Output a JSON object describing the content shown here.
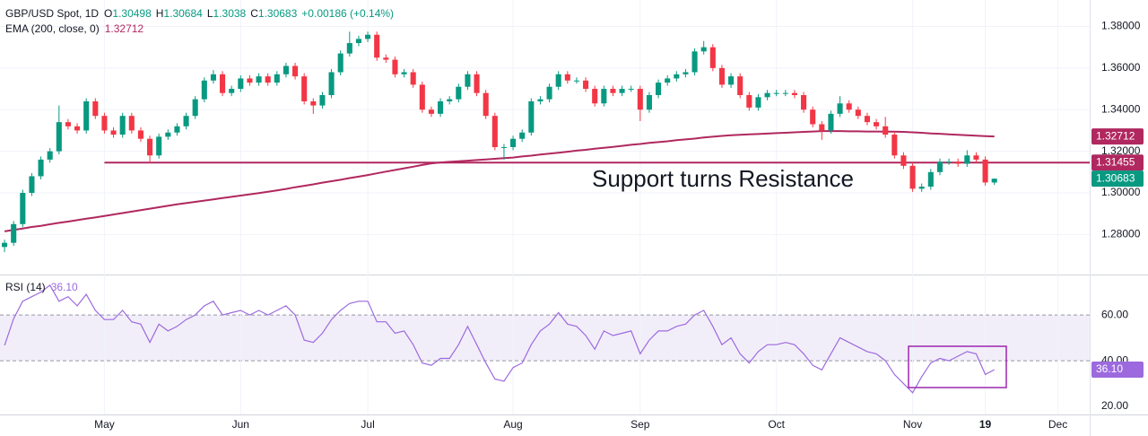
{
  "chart_data": {
    "type": "candlestick",
    "symbol": "GBP/USD Spot, 1D",
    "ohlc_prefixes": [
      "O",
      "H",
      "L",
      "C"
    ],
    "change": "+0.00186 (+0.14%)",
    "ema_title": "EMA (200, close, 0)",
    "annotation": "Support turns Resistance",
    "categories": [
      null,
      null,
      null,
      null,
      null,
      null,
      null,
      null,
      null,
      null,
      null,
      "May",
      null,
      null,
      null,
      null,
      null,
      null,
      null,
      null,
      null,
      null,
      null,
      null,
      null,
      null,
      "Jun",
      null,
      null,
      null,
      null,
      null,
      null,
      null,
      null,
      null,
      null,
      null,
      null,
      null,
      "Jul",
      null,
      null,
      null,
      null,
      null,
      null,
      null,
      null,
      null,
      null,
      null,
      null,
      null,
      null,
      null,
      "Aug",
      null,
      null,
      null,
      null,
      null,
      null,
      null,
      null,
      null,
      null,
      null,
      null,
      null,
      "Sep",
      null,
      null,
      null,
      null,
      null,
      null,
      null,
      null,
      null,
      null,
      null,
      null,
      null,
      null,
      "Oct",
      null,
      null,
      null,
      null,
      null,
      null,
      null,
      null,
      null,
      null,
      null,
      null,
      null,
      null,
      "Nov",
      null,
      null,
      null,
      null,
      null,
      null,
      null,
      "19",
      null,
      null,
      null,
      null,
      null,
      null,
      null,
      "Dec",
      null,
      null,
      null
    ],
    "open": [
      1.274,
      1.276,
      1.285,
      1.3,
      1.308,
      1.316,
      1.32,
      1.334,
      1.332,
      1.33,
      1.344,
      1.337,
      1.33,
      1.328,
      1.337,
      1.33,
      1.326,
      1.318,
      1.327,
      1.329,
      1.332,
      1.337,
      1.345,
      1.354,
      1.357,
      1.348,
      1.35,
      1.355,
      1.353,
      1.356,
      1.353,
      1.357,
      1.361,
      1.356,
      1.344,
      1.342,
      1.347,
      1.358,
      1.367,
      1.372,
      1.374,
      1.376,
      1.365,
      1.364,
      1.357,
      1.358,
      1.352,
      1.34,
      1.338,
      1.344,
      1.345,
      1.351,
      1.357,
      1.348,
      1.337,
      1.322,
      1.322,
      1.326,
      1.329,
      1.344,
      1.345,
      1.351,
      1.357,
      1.354,
      1.354,
      1.35,
      1.343,
      1.35,
      1.348,
      1.35,
      1.35,
      1.34,
      1.347,
      1.353,
      1.355,
      1.357,
      1.358,
      1.368,
      1.37,
      1.36,
      1.352,
      1.356,
      1.347,
      1.341,
      1.346,
      1.348,
      1.348,
      1.348,
      1.347,
      1.34,
      1.333,
      1.33,
      1.338,
      1.343,
      1.34,
      1.337,
      1.334,
      1.332,
      1.328,
      1.318,
      1.313,
      1.302,
      1.303,
      1.31,
      1.315,
      1.315,
      1.314,
      1.318,
      1.316,
      1.30498,
      null,
      null,
      null,
      null,
      null,
      null,
      null,
      null,
      null,
      null
    ],
    "high": [
      1.2775,
      1.2865,
      1.3015,
      1.3095,
      1.3175,
      1.3215,
      1.342,
      1.3355,
      1.3335,
      1.3455,
      1.3455,
      1.3385,
      1.3315,
      1.3385,
      1.3385,
      1.3315,
      1.3275,
      1.3285,
      1.3305,
      1.3335,
      1.3385,
      1.3465,
      1.3555,
      1.359,
      1.3585,
      1.3515,
      1.3565,
      1.3565,
      1.3575,
      1.3575,
      1.3585,
      1.3625,
      1.3625,
      1.3575,
      1.3455,
      1.3485,
      1.3595,
      1.3685,
      1.3775,
      1.3755,
      1.3775,
      1.3775,
      1.3665,
      1.3655,
      1.3595,
      1.3595,
      1.3535,
      1.3415,
      1.3455,
      1.3465,
      1.3525,
      1.3585,
      1.3585,
      1.3495,
      1.3385,
      1.3235,
      1.3275,
      1.3305,
      1.3455,
      1.3465,
      1.3525,
      1.3585,
      1.3585,
      1.3555,
      1.3555,
      1.3515,
      1.3515,
      1.3515,
      1.3515,
      1.3515,
      1.3515,
      1.3485,
      1.3545,
      1.3565,
      1.3585,
      1.3595,
      1.3695,
      1.373,
      1.3715,
      1.3615,
      1.3575,
      1.3575,
      1.3485,
      1.3475,
      1.3495,
      1.3495,
      1.3495,
      1.3495,
      1.3485,
      1.3415,
      1.3345,
      1.3395,
      1.3465,
      1.3445,
      1.3415,
      1.3385,
      1.3355,
      1.3365,
      1.3295,
      1.3195,
      1.3145,
      1.3045,
      1.3115,
      1.3165,
      1.3165,
      1.3165,
      1.3205,
      1.3195,
      1.3175,
      1.30684,
      null,
      null,
      null,
      null,
      null,
      null,
      null,
      null,
      null,
      null
    ],
    "low": [
      1.2715,
      1.2745,
      1.2835,
      1.2985,
      1.3065,
      1.3145,
      1.3185,
      1.3305,
      1.3285,
      1.3285,
      1.3355,
      1.3285,
      1.3265,
      1.3265,
      1.3285,
      1.3245,
      1.3145,
      1.3165,
      1.3255,
      1.3275,
      1.3305,
      1.3355,
      1.3435,
      1.3525,
      1.3465,
      1.3465,
      1.3485,
      1.3515,
      1.3515,
      1.3515,
      1.3515,
      1.3555,
      1.3545,
      1.3425,
      1.338,
      1.3405,
      1.3455,
      1.3565,
      1.3655,
      1.3705,
      1.3725,
      1.3635,
      1.3625,
      1.3555,
      1.3555,
      1.3505,
      1.3385,
      1.3365,
      1.3365,
      1.3425,
      1.3435,
      1.3495,
      1.3465,
      1.3355,
      1.3205,
      1.316,
      1.3205,
      1.3245,
      1.3275,
      1.3425,
      1.3435,
      1.3495,
      1.3525,
      1.3525,
      1.3485,
      1.3415,
      1.3415,
      1.3465,
      1.3465,
      1.3485,
      1.3345,
      1.3385,
      1.3455,
      1.3515,
      1.3535,
      1.3555,
      1.3565,
      1.3665,
      1.3585,
      1.3505,
      1.3505,
      1.3455,
      1.3395,
      1.3395,
      1.3445,
      1.3465,
      1.3465,
      1.3455,
      1.3385,
      1.3315,
      1.3255,
      1.3285,
      1.3365,
      1.3385,
      1.3355,
      1.3325,
      1.3305,
      1.3265,
      1.3165,
      1.3115,
      1.3005,
      1.3005,
      1.3015,
      1.3085,
      1.3135,
      1.3125,
      1.3125,
      1.3145,
      1.3035,
      1.3038,
      null,
      null,
      null,
      null,
      null,
      null,
      null,
      null,
      null,
      null
    ],
    "close": [
      1.276,
      1.285,
      1.3,
      1.308,
      1.316,
      1.32,
      1.334,
      1.332,
      1.33,
      1.344,
      1.337,
      1.33,
      1.328,
      1.337,
      1.33,
      1.326,
      1.318,
      1.327,
      1.329,
      1.332,
      1.337,
      1.345,
      1.354,
      1.357,
      1.348,
      1.35,
      1.355,
      1.353,
      1.356,
      1.353,
      1.357,
      1.361,
      1.356,
      1.344,
      1.342,
      1.347,
      1.358,
      1.367,
      1.372,
      1.374,
      1.376,
      1.365,
      1.364,
      1.357,
      1.358,
      1.352,
      1.34,
      1.338,
      1.344,
      1.345,
      1.351,
      1.357,
      1.348,
      1.337,
      1.322,
      1.322,
      1.326,
      1.329,
      1.344,
      1.345,
      1.351,
      1.357,
      1.354,
      1.354,
      1.35,
      1.343,
      1.35,
      1.348,
      1.35,
      1.35,
      1.34,
      1.347,
      1.353,
      1.355,
      1.357,
      1.358,
      1.368,
      1.37,
      1.36,
      1.352,
      1.356,
      1.347,
      1.341,
      1.346,
      1.348,
      1.348,
      1.348,
      1.347,
      1.34,
      1.333,
      1.33,
      1.338,
      1.343,
      1.34,
      1.337,
      1.334,
      1.332,
      1.328,
      1.318,
      1.313,
      1.302,
      1.303,
      1.31,
      1.315,
      1.315,
      1.314,
      1.318,
      1.316,
      1.305,
      1.30683,
      null,
      null,
      null,
      null,
      null,
      null,
      null,
      null,
      null,
      null
    ],
    "up_color": "#089981",
    "down_color": "#f23645",
    "ema": {
      "color": "#b0285f",
      "values": [
        1.2815,
        1.2822,
        1.2829,
        1.2836,
        1.2842,
        1.2849,
        1.2856,
        1.2862,
        1.2869,
        1.2876,
        1.2882,
        1.2889,
        1.2896,
        1.2903,
        1.291,
        1.2917,
        1.2924,
        1.2931,
        1.2938,
        1.2945,
        1.2951,
        1.2957,
        1.2963,
        1.2969,
        1.2975,
        1.2981,
        1.2987,
        1.2993,
        1.2999,
        1.3005,
        1.3012,
        1.3019,
        1.3027,
        1.3034,
        1.3041,
        1.3049,
        1.3056,
        1.3063,
        1.3071,
        1.3078,
        1.3086,
        1.3094,
        1.3102,
        1.311,
        1.3118,
        1.3126,
        1.3134,
        1.3142,
        1.3146,
        1.3149,
        1.3152,
        1.3155,
        1.3158,
        1.3161,
        1.3164,
        1.3167,
        1.317,
        1.3175,
        1.3179,
        1.3184,
        1.3189,
        1.3193,
        1.3198,
        1.3203,
        1.3207,
        1.3212,
        1.3217,
        1.3221,
        1.3226,
        1.3231,
        1.3235,
        1.324,
        1.3244,
        1.3248,
        1.3253,
        1.3257,
        1.3261,
        1.3266,
        1.327,
        1.3274,
        1.3277,
        1.3279,
        1.3281,
        1.3283,
        1.3285,
        1.3287,
        1.3289,
        1.3291,
        1.3293,
        1.3295,
        1.3297,
        1.3297,
        1.3297,
        1.3296,
        1.3296,
        1.3295,
        1.3295,
        1.3294,
        1.3294,
        1.3293,
        1.3291,
        1.3289,
        1.3286,
        1.3284,
        1.3281,
        1.3279,
        1.3277,
        1.3275,
        1.3273,
        1.32712,
        null,
        null,
        null,
        null,
        null,
        null,
        null,
        null,
        null,
        null
      ]
    },
    "support_level": 1.31455,
    "ylim": [
      1.2612,
      1.3927
    ],
    "yticks": [
      {
        "value": 1.28,
        "label": "1.28000"
      },
      {
        "value": 1.3,
        "label": "1.30000"
      },
      {
        "value": 1.32,
        "label": "1.32000"
      },
      {
        "value": 1.34,
        "label": "1.34000"
      },
      {
        "value": 1.36,
        "label": "1.36000"
      },
      {
        "value": 1.38,
        "label": "1.38000"
      }
    ],
    "rsi": {
      "title": "RSI (14)",
      "color": "#9c6ade",
      "value_label": "36.10",
      "values": [
        46.7,
        58.4,
        66,
        68,
        70,
        73,
        66,
        68,
        64,
        69,
        62,
        58,
        58,
        62,
        57,
        56,
        48,
        56,
        53,
        55,
        58,
        60,
        64,
        66,
        60,
        61,
        62,
        60,
        62,
        60,
        62,
        64,
        60,
        49,
        48,
        52,
        58,
        62,
        65,
        66,
        66,
        57,
        57,
        52,
        53,
        47,
        39,
        38,
        41,
        41,
        47,
        55,
        47,
        39,
        32,
        31,
        37,
        39,
        47,
        53,
        56,
        61,
        56,
        55,
        51,
        45,
        53,
        51,
        52,
        53,
        43,
        49,
        53,
        53,
        55,
        56,
        60,
        62,
        55,
        47,
        50,
        43,
        39,
        44,
        47,
        47,
        48,
        47,
        43,
        38,
        36,
        43,
        50,
        48,
        46,
        44,
        43,
        40,
        34,
        30,
        26,
        33,
        39,
        41,
        40,
        42,
        44,
        43,
        34,
        36.1,
        null,
        null,
        null,
        null,
        null,
        null,
        null,
        null,
        null,
        null
      ],
      "ylim": [
        16.5,
        76.9
      ],
      "yticks": [
        {
          "value": 20,
          "label": "20.00"
        },
        {
          "value": 40,
          "label": "40.00"
        },
        {
          "value": 60,
          "label": "60.00"
        }
      ]
    }
  }
}
